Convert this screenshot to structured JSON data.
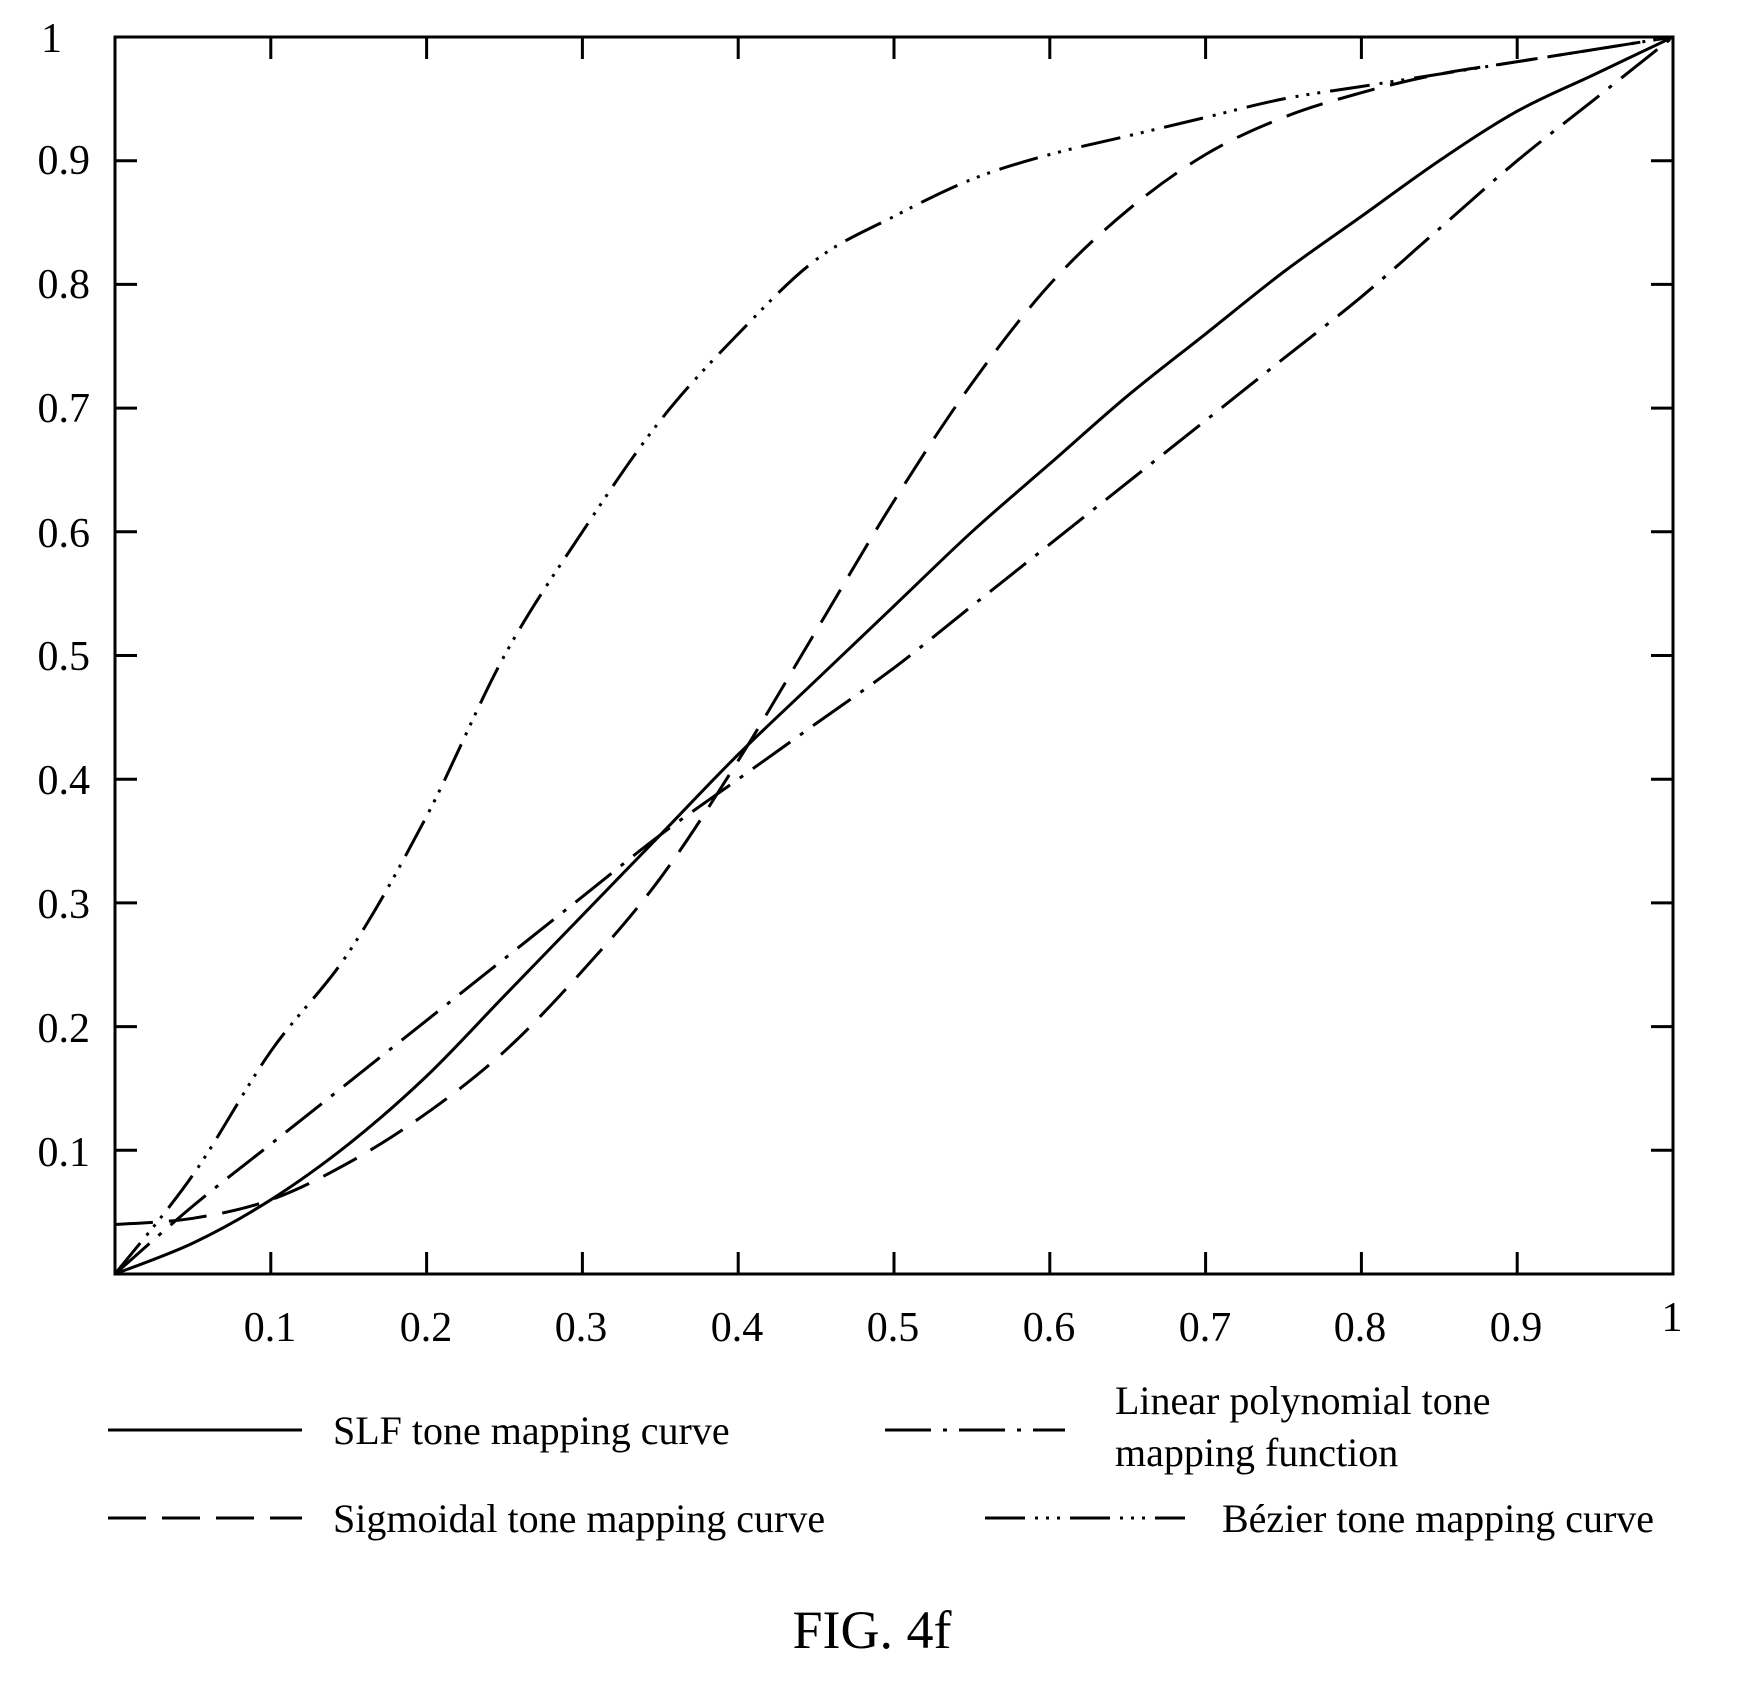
{
  "chart_data": {
    "type": "line",
    "title": "",
    "xlabel": "",
    "ylabel": "",
    "xlim": [
      0,
      1
    ],
    "ylim": [
      0,
      1
    ],
    "grid": false,
    "legend_position": "bottom",
    "x_tick_labels": [
      "0.1",
      "0.2",
      "0.3",
      "0.4",
      "0.5",
      "0.6",
      "0.7",
      "0.8",
      "0.9",
      "1"
    ],
    "y_tick_labels": [
      "0.1",
      "0.2",
      "0.3",
      "0.4",
      "0.5",
      "0.6",
      "0.7",
      "0.8",
      "0.9",
      "1"
    ],
    "series": [
      {
        "name": "SLF tone mapping curve",
        "style": "solid",
        "x": [
          0,
          0.05,
          0.1,
          0.15,
          0.2,
          0.25,
          0.3,
          0.35,
          0.4,
          0.45,
          0.5,
          0.55,
          0.6,
          0.65,
          0.7,
          0.75,
          0.8,
          0.85,
          0.9,
          0.95,
          1
        ],
        "y": [
          0,
          0.025,
          0.06,
          0.105,
          0.16,
          0.225,
          0.29,
          0.355,
          0.42,
          0.48,
          0.54,
          0.6,
          0.655,
          0.71,
          0.76,
          0.81,
          0.855,
          0.9,
          0.94,
          0.97,
          1
        ]
      },
      {
        "name": "Linear polynomial tone mapping function",
        "style": "dash-dot",
        "x": [
          0,
          0.05,
          0.1,
          0.15,
          0.2,
          0.25,
          0.3,
          0.35,
          0.4,
          0.45,
          0.5,
          0.55,
          0.6,
          0.65,
          0.7,
          0.75,
          0.8,
          0.85,
          0.9,
          0.95,
          1
        ],
        "y": [
          0,
          0.055,
          0.105,
          0.155,
          0.205,
          0.255,
          0.305,
          0.355,
          0.4,
          0.445,
          0.49,
          0.54,
          0.59,
          0.64,
          0.69,
          0.74,
          0.79,
          0.845,
          0.9,
          0.95,
          1
        ]
      },
      {
        "name": "Sigmoidal tone mapping curve",
        "style": "dashed",
        "x": [
          0,
          0.05,
          0.1,
          0.15,
          0.2,
          0.25,
          0.3,
          0.35,
          0.4,
          0.45,
          0.5,
          0.55,
          0.6,
          0.65,
          0.7,
          0.75,
          0.8,
          0.85,
          0.9,
          0.95,
          1
        ],
        "y": [
          0.04,
          0.045,
          0.06,
          0.09,
          0.13,
          0.18,
          0.245,
          0.32,
          0.415,
          0.52,
          0.625,
          0.72,
          0.8,
          0.86,
          0.905,
          0.935,
          0.955,
          0.97,
          0.98,
          0.99,
          1
        ]
      },
      {
        "name": "Bézier tone mapping curve",
        "style": "dash-dot-dot",
        "x": [
          0,
          0.05,
          0.1,
          0.15,
          0.2,
          0.25,
          0.3,
          0.35,
          0.4,
          0.45,
          0.5,
          0.55,
          0.6,
          0.65,
          0.7,
          0.75,
          0.8,
          0.85,
          0.9,
          0.95,
          1
        ],
        "y": [
          0,
          0.08,
          0.18,
          0.26,
          0.37,
          0.5,
          0.6,
          0.69,
          0.76,
          0.82,
          0.855,
          0.885,
          0.905,
          0.92,
          0.935,
          0.95,
          0.96,
          0.97,
          0.98,
          0.99,
          1
        ]
      }
    ]
  },
  "legend": {
    "slf": "SLF tone mapping curve",
    "linear_line1": "Linear polynomial tone",
    "linear_line2": "mapping function",
    "sigmoid": "Sigmoidal tone mapping curve",
    "bezier": "Bézier tone mapping curve"
  },
  "caption": "FIG. 4f"
}
